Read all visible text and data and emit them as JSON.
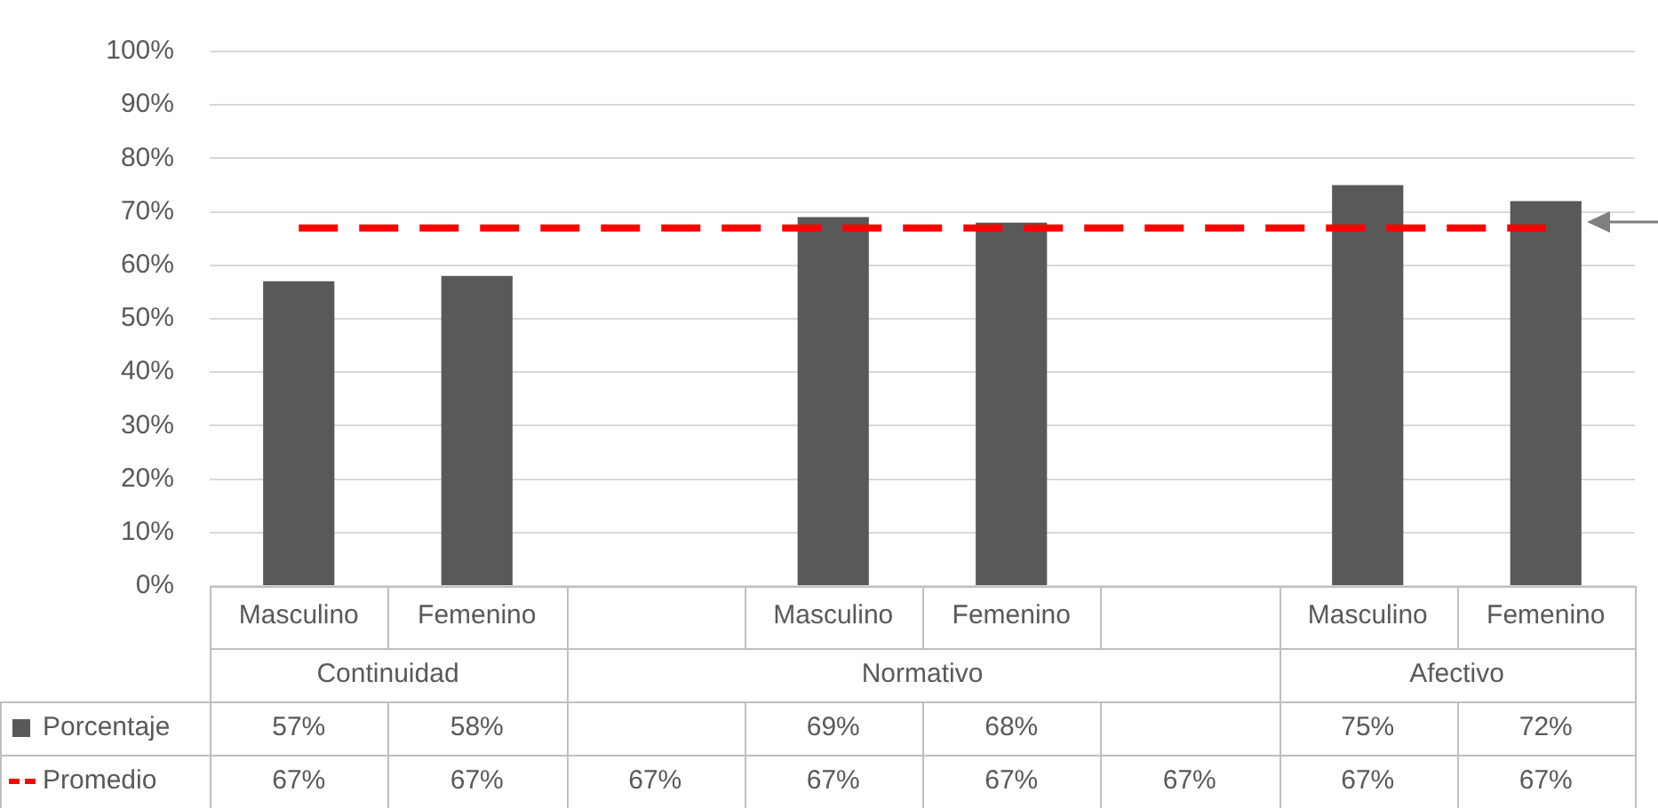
{
  "chart_data": {
    "type": "bar",
    "categories": [
      "Masculino",
      "Femenino",
      null,
      "Masculino",
      "Femenino",
      null,
      "Masculino",
      "Femenino"
    ],
    "series": [
      {
        "name": "Porcentaje",
        "color": "#595959",
        "values": [
          57,
          58,
          null,
          69,
          68,
          null,
          75,
          72
        ],
        "value_labels": [
          "57%",
          "58%",
          null,
          "69%",
          "68%",
          null,
          "75%",
          "72%"
        ]
      },
      {
        "name": "Promedio",
        "type": "line",
        "color": "#ff0000",
        "values": [
          67,
          67,
          67,
          67,
          67,
          67,
          67,
          67
        ],
        "value_labels": [
          "67%",
          "67%",
          "67%",
          "67%",
          "67%",
          "67%",
          "67%",
          "67%"
        ]
      }
    ],
    "ylim": [
      0,
      100
    ],
    "yticks": [
      {
        "value": 0,
        "label": "0%"
      },
      {
        "value": 10,
        "label": "10%"
      },
      {
        "value": 20,
        "label": "20%"
      },
      {
        "value": 30,
        "label": "30%"
      },
      {
        "value": 40,
        "label": "40%"
      },
      {
        "value": 50,
        "label": "50%"
      },
      {
        "value": 60,
        "label": "60%"
      },
      {
        "value": 70,
        "label": "70%"
      },
      {
        "value": 80,
        "label": "80%"
      },
      {
        "value": 90,
        "label": "90%"
      },
      {
        "value": 100,
        "label": "100%"
      }
    ],
    "grid": "y",
    "legend": "bottom left",
    "line_style": "dashed",
    "marker": "none",
    "data_labels": true,
    "annotations": [
      "Continuidad",
      "Normativo",
      "Afectivo"
    ]
  }
}
